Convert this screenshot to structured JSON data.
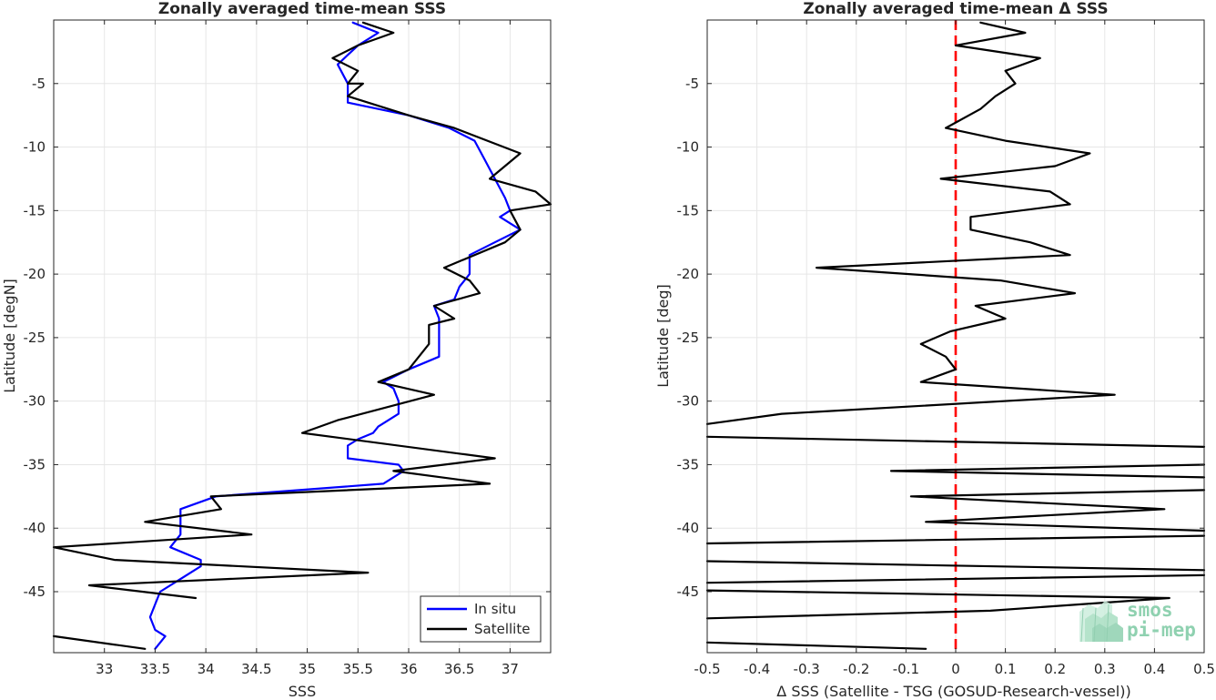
{
  "chart_data": [
    {
      "type": "line",
      "title": "Zonally averaged time-mean SSS",
      "xlabel": "SSS",
      "ylabel": "Latitude [degN]",
      "xlim": [
        32.5,
        37.4
      ],
      "ylim": [
        -49.8,
        0
      ],
      "xticks": [
        "33",
        "33.5",
        "34",
        "34.5",
        "35",
        "35.5",
        "36",
        "36.5",
        "37"
      ],
      "xtick_values": [
        33,
        33.5,
        34,
        34.5,
        35,
        35.5,
        36,
        36.5,
        37
      ],
      "yticks": [
        "-5",
        "-10",
        "-15",
        "-20",
        "-25",
        "-30",
        "-35",
        "-40",
        "-45"
      ],
      "ytick_values": [
        -5,
        -10,
        -15,
        -20,
        -25,
        -30,
        -35,
        -40,
        -45
      ],
      "grid": true,
      "legend_position": "bottom-right",
      "series": [
        {
          "name": "In situ",
          "color": "#0000ff",
          "points": [
            [
              35.45,
              -0.2
            ],
            [
              35.7,
              -1
            ],
            [
              35.5,
              -2
            ],
            [
              35.3,
              -3.5
            ],
            [
              35.4,
              -5
            ],
            [
              35.4,
              -6.5
            ],
            [
              36.0,
              -7.5
            ],
            [
              36.4,
              -8.5
            ],
            [
              36.65,
              -9.5
            ],
            [
              36.75,
              -11
            ],
            [
              36.85,
              -12.5
            ],
            [
              36.95,
              -14
            ],
            [
              37.0,
              -15
            ],
            [
              36.9,
              -15.5
            ],
            [
              37.1,
              -16.5
            ],
            [
              36.85,
              -17.5
            ],
            [
              36.6,
              -18.5
            ],
            [
              36.6,
              -20
            ],
            [
              36.5,
              -21
            ],
            [
              36.45,
              -22
            ],
            [
              36.25,
              -22.5
            ],
            [
              36.3,
              -23.5
            ],
            [
              36.3,
              -24
            ],
            [
              36.3,
              -25.5
            ],
            [
              36.3,
              -26.5
            ],
            [
              36.0,
              -27.5
            ],
            [
              35.75,
              -28.5
            ],
            [
              35.85,
              -29
            ],
            [
              35.9,
              -30
            ],
            [
              35.9,
              -31
            ],
            [
              35.7,
              -32
            ],
            [
              35.65,
              -32.5
            ],
            [
              35.5,
              -33
            ],
            [
              35.4,
              -33.5
            ],
            [
              35.4,
              -34.5
            ],
            [
              35.9,
              -35
            ],
            [
              35.95,
              -35.5
            ],
            [
              35.75,
              -36.5
            ],
            [
              34.1,
              -37.5
            ],
            [
              33.75,
              -38.5
            ],
            [
              33.75,
              -39.5
            ],
            [
              33.75,
              -40.5
            ],
            [
              33.65,
              -41.5
            ],
            [
              33.95,
              -42.5
            ],
            [
              33.95,
              -43
            ],
            [
              33.75,
              -44
            ],
            [
              33.55,
              -45
            ],
            [
              33.5,
              -46
            ],
            [
              33.45,
              -47
            ],
            [
              33.5,
              -48
            ],
            [
              33.6,
              -48.5
            ],
            [
              33.5,
              -49.5
            ]
          ]
        },
        {
          "name": "Satellite",
          "color": "#000000",
          "points": [
            [
              35.55,
              -0.2
            ],
            [
              35.85,
              -1
            ],
            [
              35.5,
              -2
            ],
            [
              35.25,
              -3
            ],
            [
              35.5,
              -4
            ],
            [
              35.4,
              -5
            ],
            [
              35.55,
              -5
            ],
            [
              35.4,
              -6
            ],
            [
              36.0,
              -7.5
            ],
            [
              36.45,
              -8.5
            ],
            [
              37.1,
              -10.5
            ],
            [
              36.8,
              -12.5
            ],
            [
              37.25,
              -13.5
            ],
            [
              37.4,
              -14.5
            ],
            [
              37.0,
              -15
            ],
            [
              37.1,
              -16.5
            ],
            [
              36.95,
              -17.5
            ],
            [
              36.35,
              -19.5
            ],
            [
              36.6,
              -20.5
            ],
            [
              36.7,
              -21.5
            ],
            [
              36.25,
              -22.5
            ],
            [
              36.45,
              -23.5
            ],
            [
              36.2,
              -24
            ],
            [
              36.2,
              -25.5
            ],
            [
              36.15,
              -26
            ],
            [
              36.0,
              -27.5
            ],
            [
              35.7,
              -28.5
            ],
            [
              36.25,
              -29.5
            ],
            [
              35.3,
              -31.5
            ],
            [
              34.95,
              -32.5
            ],
            [
              36.85,
              -34.5
            ],
            [
              35.85,
              -35.5
            ],
            [
              36.8,
              -36.5
            ],
            [
              34.05,
              -37.5
            ],
            [
              34.15,
              -38.5
            ],
            [
              33.4,
              -39.5
            ],
            [
              34.45,
              -40.5
            ],
            [
              32.5,
              -41.5
            ],
            [
              33.1,
              -42.5
            ],
            [
              35.6,
              -43.5
            ],
            [
              32.85,
              -44.5
            ],
            [
              33.9,
              -45.5
            ]
          ]
        },
        {
          "name": "",
          "color": "#000000",
          "points": [
            [
              32.5,
              -48.5
            ],
            [
              33.4,
              -49.5
            ]
          ]
        }
      ]
    },
    {
      "type": "line",
      "title": "Zonally averaged time-mean Δ SSS",
      "xlabel": "Δ SSS (Satellite - TSG (GOSUD-Research-vessel))",
      "ylabel": "Latitude [deg]",
      "xlim": [
        -0.5,
        0.5
      ],
      "ylim": [
        -49.8,
        0
      ],
      "xticks": [
        "-0.5",
        "-0.4",
        "-0.3",
        "-0.2",
        "-0.1",
        "0",
        "0.1",
        "0.2",
        "0.3",
        "0.4",
        "0.5"
      ],
      "xtick_values": [
        -0.5,
        -0.4,
        -0.3,
        -0.2,
        -0.1,
        0,
        0.1,
        0.2,
        0.3,
        0.4,
        0.5
      ],
      "yticks": [
        "-5",
        "-10",
        "-15",
        "-20",
        "-25",
        "-30",
        "-35",
        "-40",
        "-45"
      ],
      "ytick_values": [
        -5,
        -10,
        -15,
        -20,
        -25,
        -30,
        -35,
        -40,
        -45
      ],
      "grid": true,
      "reference_line": {
        "x": 0,
        "color": "#ff0000",
        "style": "dashed"
      },
      "series": [
        {
          "name": "",
          "color": "#000000",
          "points": [
            [
              0.05,
              -0.2
            ],
            [
              0.14,
              -1
            ],
            [
              0.0,
              -2
            ],
            [
              0.17,
              -3
            ],
            [
              0.1,
              -4
            ],
            [
              0.12,
              -5
            ],
            [
              0.08,
              -6
            ],
            [
              0.05,
              -7
            ],
            [
              -0.02,
              -8.5
            ],
            [
              0.1,
              -9.5
            ],
            [
              0.27,
              -10.5
            ],
            [
              0.2,
              -11.5
            ],
            [
              -0.03,
              -12.5
            ],
            [
              0.19,
              -13.5
            ],
            [
              0.23,
              -14.5
            ],
            [
              0.03,
              -15.5
            ],
            [
              0.03,
              -16.5
            ],
            [
              0.15,
              -17.5
            ],
            [
              0.23,
              -18.5
            ],
            [
              -0.28,
              -19.5
            ],
            [
              0.09,
              -20.5
            ],
            [
              0.24,
              -21.5
            ],
            [
              0.04,
              -22.5
            ],
            [
              0.1,
              -23.5
            ],
            [
              -0.01,
              -24.5
            ],
            [
              -0.07,
              -25.5
            ],
            [
              -0.02,
              -26.5
            ],
            [
              0.0,
              -27.5
            ],
            [
              -0.07,
              -28.5
            ],
            [
              0.32,
              -29.5
            ],
            [
              -0.35,
              -31
            ],
            [
              -0.5,
              -31.8
            ]
          ]
        },
        {
          "name": "",
          "color": "#000000",
          "points": [
            [
              -0.5,
              -32.8
            ],
            [
              0.5,
              -33.6
            ]
          ]
        },
        {
          "name": "",
          "color": "#000000",
          "points": [
            [
              0.5,
              -35
            ],
            [
              -0.13,
              -35.5
            ],
            [
              0.5,
              -36
            ]
          ]
        },
        {
          "name": "",
          "color": "#000000",
          "points": [
            [
              0.5,
              -37
            ],
            [
              -0.09,
              -37.5
            ],
            [
              0.42,
              -38.5
            ],
            [
              -0.06,
              -39.5
            ],
            [
              0.5,
              -40.2
            ]
          ]
        },
        {
          "name": "",
          "color": "#000000",
          "points": [
            [
              0.5,
              -40.6
            ],
            [
              -0.5,
              -41.2
            ]
          ]
        },
        {
          "name": "",
          "color": "#000000",
          "points": [
            [
              -0.5,
              -42.6
            ],
            [
              0.5,
              -43.3
            ]
          ]
        },
        {
          "name": "",
          "color": "#000000",
          "points": [
            [
              0.5,
              -43.7
            ],
            [
              -0.5,
              -44.3
            ]
          ]
        },
        {
          "name": "",
          "color": "#000000",
          "points": [
            [
              -0.5,
              -44.9
            ],
            [
              0.43,
              -45.5
            ],
            [
              0.07,
              -46.5
            ],
            [
              -0.5,
              -47.1
            ]
          ]
        },
        {
          "name": "",
          "color": "#000000",
          "points": [
            [
              -0.5,
              -49
            ],
            [
              -0.06,
              -49.5
            ]
          ]
        }
      ]
    }
  ],
  "logo": {
    "line1": "smos",
    "line2": "pi-mep",
    "color": "#8fd1b0"
  }
}
